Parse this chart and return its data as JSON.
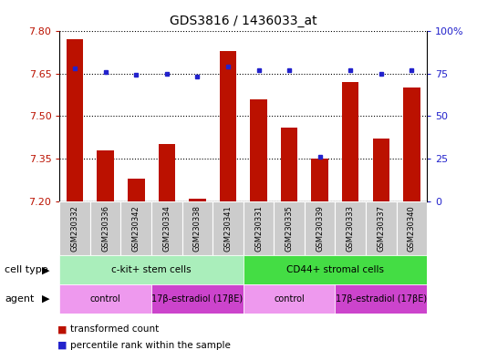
{
  "title": "GDS3816 / 1436033_at",
  "samples": [
    "GSM230332",
    "GSM230336",
    "GSM230342",
    "GSM230334",
    "GSM230338",
    "GSM230341",
    "GSM230331",
    "GSM230335",
    "GSM230339",
    "GSM230333",
    "GSM230337",
    "GSM230340"
  ],
  "transformed_count": [
    7.77,
    7.38,
    7.28,
    7.4,
    7.21,
    7.73,
    7.56,
    7.46,
    7.35,
    7.62,
    7.42,
    7.6
  ],
  "percentile_rank": [
    78,
    76,
    74,
    75,
    73,
    79,
    77,
    77,
    26,
    77,
    75,
    77
  ],
  "ylim_left": [
    7.2,
    7.8
  ],
  "ylim_right": [
    0,
    100
  ],
  "yticks_left": [
    7.2,
    7.35,
    7.5,
    7.65,
    7.8
  ],
  "yticks_right": [
    0,
    25,
    50,
    75,
    100
  ],
  "bar_color": "#bb1100",
  "dot_color": "#2222cc",
  "cell_type_groups": [
    {
      "label": "c-kit+ stem cells",
      "start": 0,
      "end": 5,
      "color": "#aaeebb"
    },
    {
      "label": "CD44+ stromal cells",
      "start": 6,
      "end": 11,
      "color": "#44dd44"
    }
  ],
  "agent_groups": [
    {
      "label": "control",
      "start": 0,
      "end": 2,
      "color": "#ee99ee"
    },
    {
      "label": "17β-estradiol (17βE)",
      "start": 3,
      "end": 5,
      "color": "#cc44cc"
    },
    {
      "label": "control",
      "start": 6,
      "end": 8,
      "color": "#ee99ee"
    },
    {
      "label": "17β-estradiol (17βE)",
      "start": 9,
      "end": 11,
      "color": "#cc44cc"
    }
  ],
  "legend_items": [
    {
      "label": "transformed count",
      "color": "#bb1100"
    },
    {
      "label": "percentile rank within the sample",
      "color": "#2222cc"
    }
  ],
  "cell_type_label": "cell type",
  "agent_label": "agent",
  "sample_box_color": "#cccccc"
}
